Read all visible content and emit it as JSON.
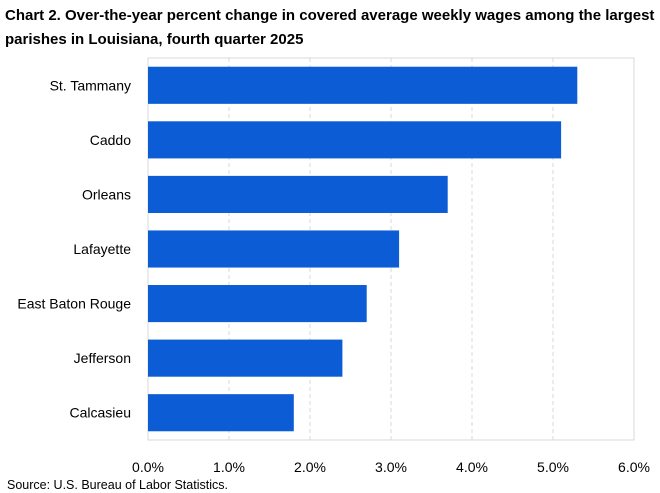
{
  "title": "Chart 2. Over-the-year percent change in covered average weekly wages among the largest parishes in Louisiana, fourth quarter 2025",
  "source": "Source: U.S. Bureau of Labor Statistics.",
  "chart_data": {
    "type": "bar",
    "orientation": "horizontal",
    "categories": [
      "St. Tammany",
      "Caddo",
      "Orleans",
      "Lafayette",
      "East Baton Rouge",
      "Jefferson",
      "Calcasieu"
    ],
    "values": [
      5.3,
      5.1,
      3.7,
      3.1,
      2.7,
      2.4,
      1.8
    ],
    "xlim": [
      0,
      6
    ],
    "xticks": [
      0,
      1,
      2,
      3,
      4,
      5,
      6
    ],
    "xtick_labels": [
      "0.0%",
      "1.0%",
      "2.0%",
      "3.0%",
      "4.0%",
      "5.0%",
      "6.0%"
    ],
    "bar_color": "#0b5cd5",
    "grid": "vertical dashed",
    "legend": "none"
  }
}
